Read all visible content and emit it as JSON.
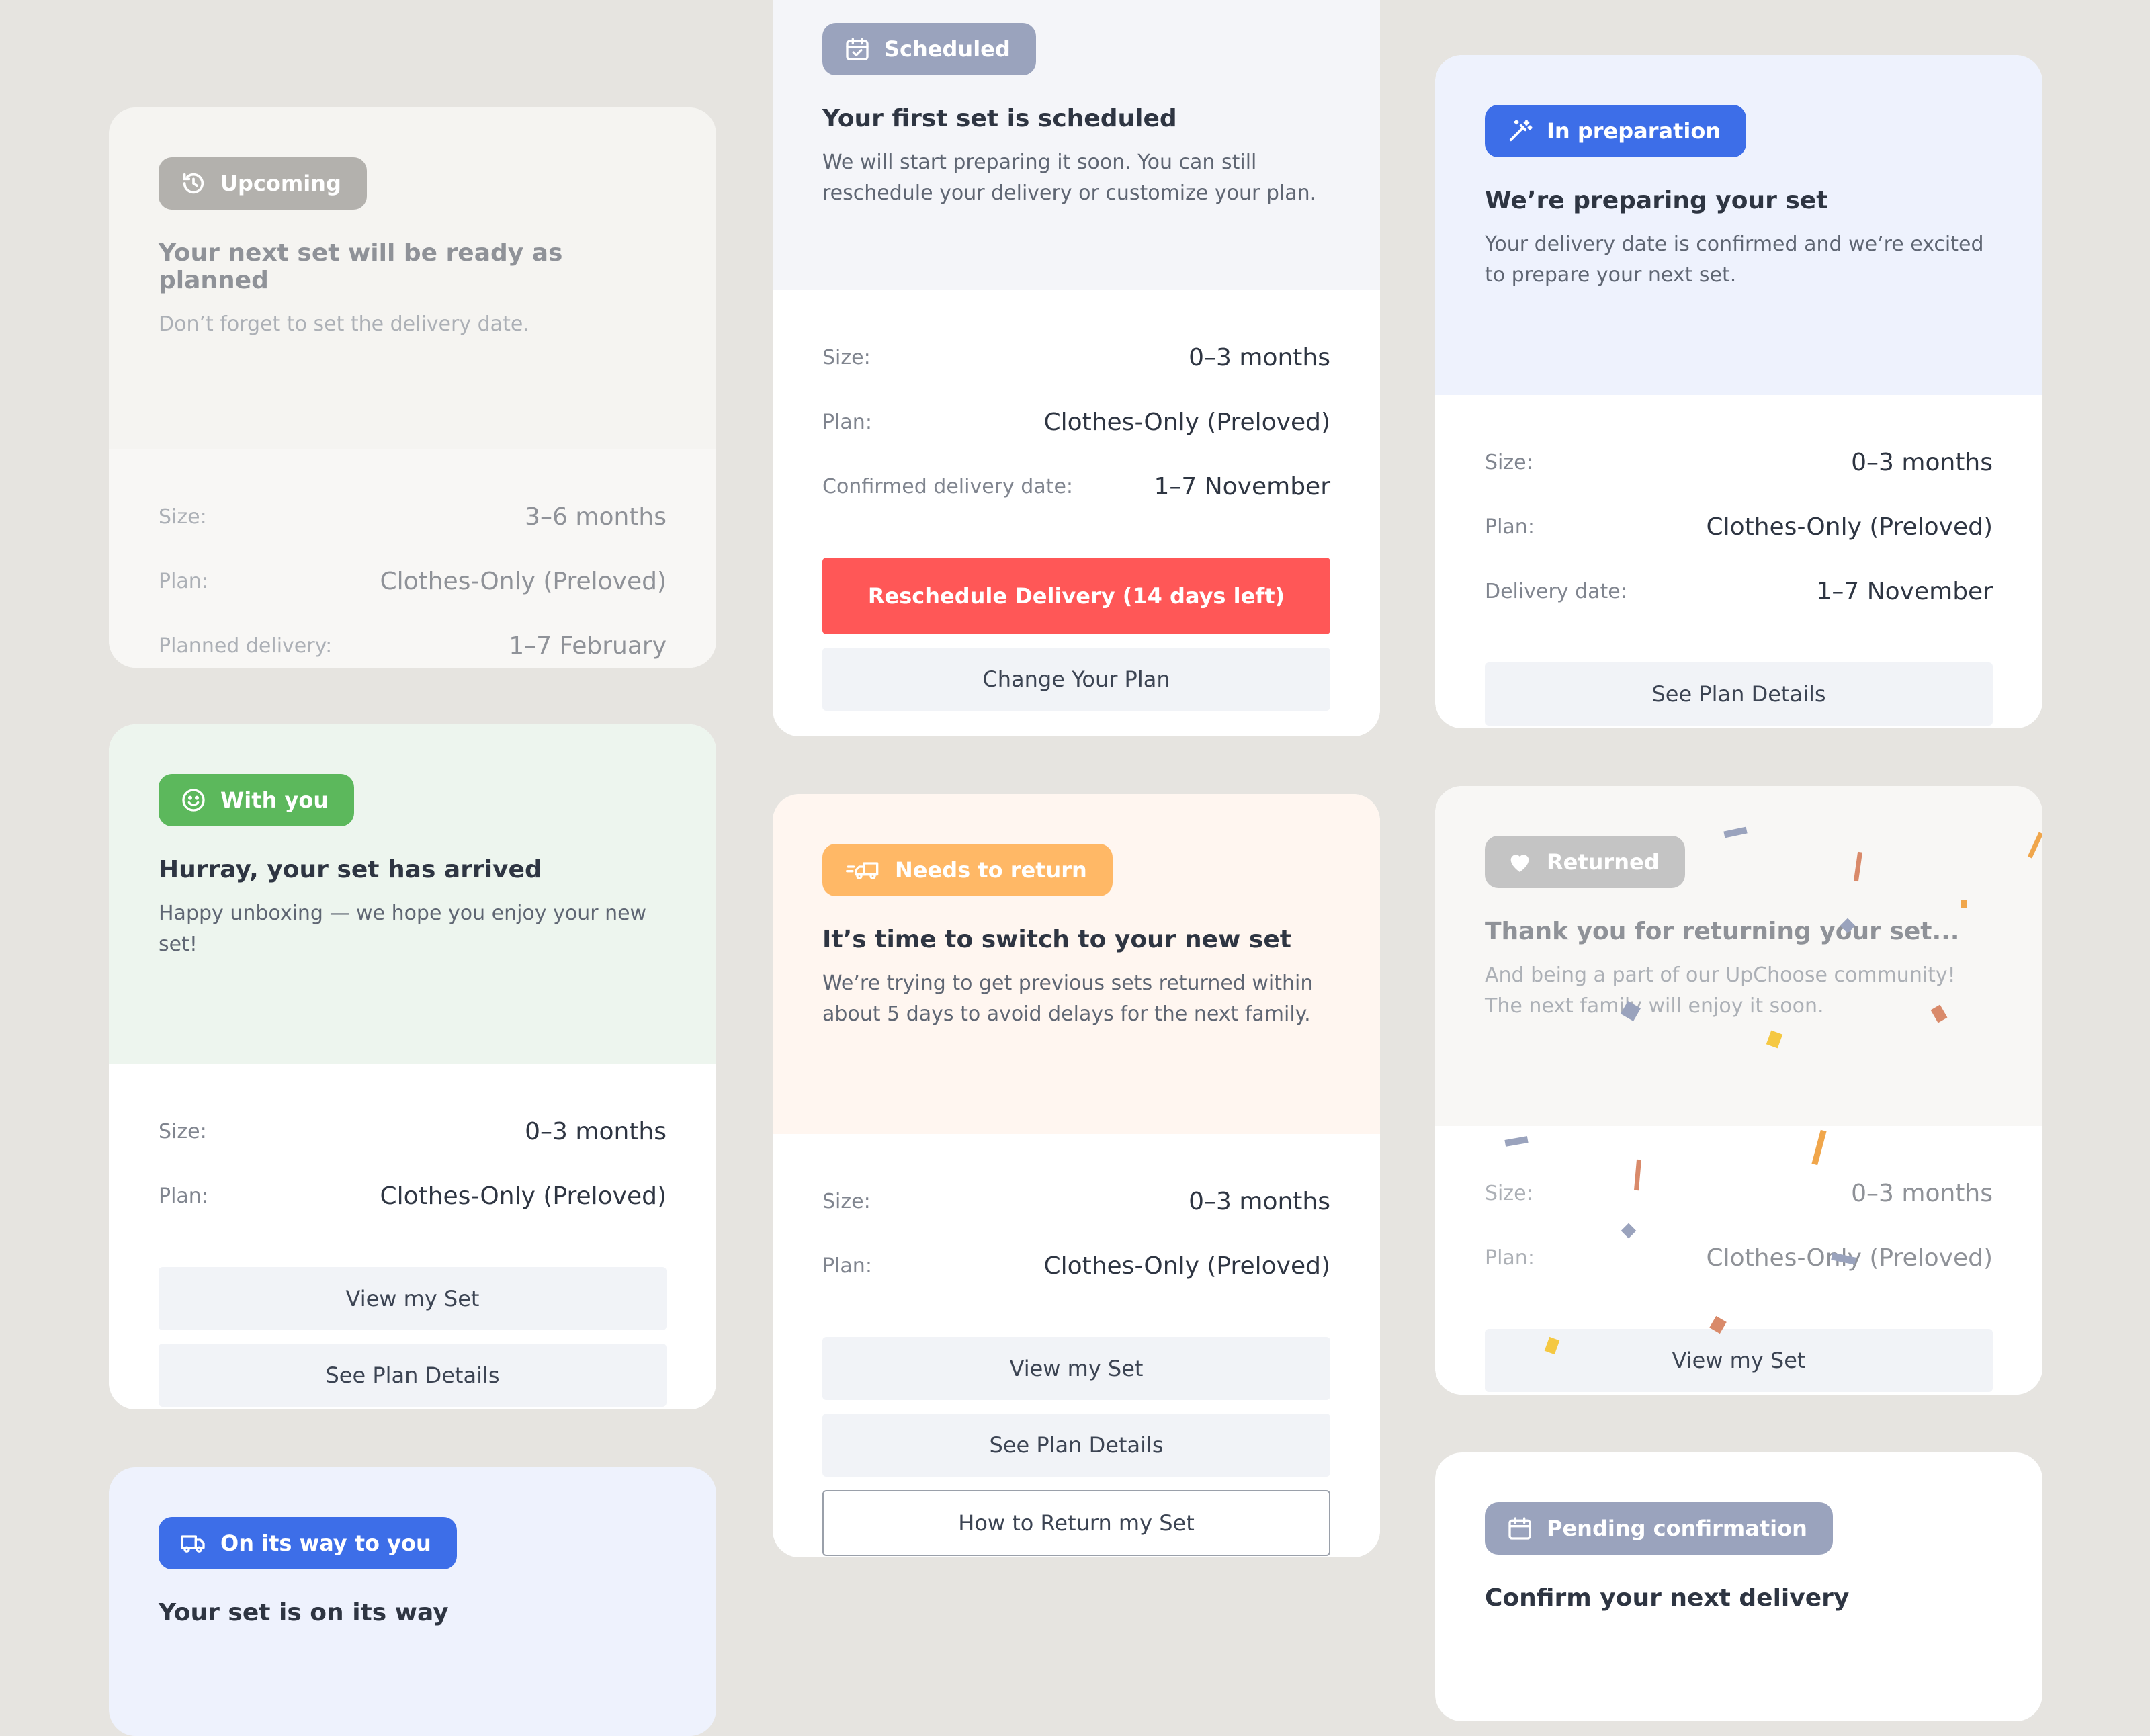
{
  "cards": {
    "upcoming": {
      "badge": "Upcoming",
      "title": "Your next set will be ready as planned",
      "desc": "Don’t forget to set the delivery date.",
      "rows": [
        {
          "label": "Size:",
          "value": "3–6 months"
        },
        {
          "label": "Plan:",
          "value": "Clothes-Only (Preloved)"
        },
        {
          "label": "Planned delivery:",
          "value": "1–7 February"
        }
      ]
    },
    "with_you": {
      "badge": "With you",
      "title": "Hurray, your set has arrived",
      "desc": "Happy unboxing — we hope you enjoy your new set!",
      "rows": [
        {
          "label": "Size:",
          "value": "0–3 months"
        },
        {
          "label": "Plan:",
          "value": "Clothes-Only (Preloved)"
        }
      ],
      "buttons": [
        "View my Set",
        "See Plan Details"
      ]
    },
    "on_its_way": {
      "badge": "On its way to you",
      "title": "Your set is on its way"
    },
    "scheduled": {
      "badge": "Scheduled",
      "title": "Your first set is scheduled",
      "desc": "We will start preparing it soon. You can still reschedule your delivery or customize your plan.",
      "rows": [
        {
          "label": "Size:",
          "value": "0–3 months"
        },
        {
          "label": "Plan:",
          "value": "Clothes-Only (Preloved)"
        },
        {
          "label": "Confirmed delivery date:",
          "value": "1–7 November"
        }
      ],
      "buttons": [
        "Reschedule Delivery (14 days left)",
        "Change Your Plan"
      ]
    },
    "needs_return": {
      "badge": "Needs to return",
      "title": "It’s time to switch to your new set",
      "desc": "We’re trying to get previous sets returned within about 5 days to avoid delays for the next family.",
      "rows": [
        {
          "label": "Size:",
          "value": "0–3 months"
        },
        {
          "label": "Plan:",
          "value": "Clothes-Only (Preloved)"
        }
      ],
      "buttons": [
        "View my Set",
        "See Plan Details",
        "How to Return my Set"
      ]
    },
    "in_preparation": {
      "badge": "In preparation",
      "title": "We’re preparing your set",
      "desc": "Your delivery date is confirmed and we’re excited to prepare your next set.",
      "rows": [
        {
          "label": "Size:",
          "value": "0–3 months"
        },
        {
          "label": "Plan:",
          "value": "Clothes-Only (Preloved)"
        },
        {
          "label": "Delivery date:",
          "value": "1–7 November"
        }
      ],
      "buttons": [
        "See Plan Details"
      ]
    },
    "returned": {
      "badge": "Returned",
      "title": "Thank you for returning your set...",
      "desc": "And being a part of our UpChoose community! The next family will enjoy it soon.",
      "rows": [
        {
          "label": "Size:",
          "value": "0–3 months"
        },
        {
          "label": "Plan:",
          "value": "Clothes-Only (Preloved)"
        }
      ],
      "buttons": [
        "View my Set"
      ]
    },
    "pending": {
      "badge": "Pending confirmation",
      "title": "Confirm your next delivery"
    }
  },
  "colors": {
    "page_bg": "#e6e4e0",
    "upcoming_badge": "#b3b1ad",
    "with_you_badge": "#5cb85c",
    "on_its_way_badge": "#3d6ee8",
    "scheduled_badge": "#9aa3bd",
    "needs_return_badge": "#ffb866",
    "in_preparation_badge": "#3d6ee8",
    "returned_badge": "#c4c4c4",
    "pending_badge": "#9aa3bd",
    "reschedule_button": "#ff5757"
  },
  "icons": {
    "upcoming": "history-icon",
    "with_you": "smiley-icon",
    "on_its_way": "truck-icon",
    "scheduled": "calendar-check-icon",
    "needs_return": "truck-return-icon",
    "in_preparation": "magic-wand-icon",
    "returned": "heart-icon",
    "pending": "calendar-icon"
  }
}
